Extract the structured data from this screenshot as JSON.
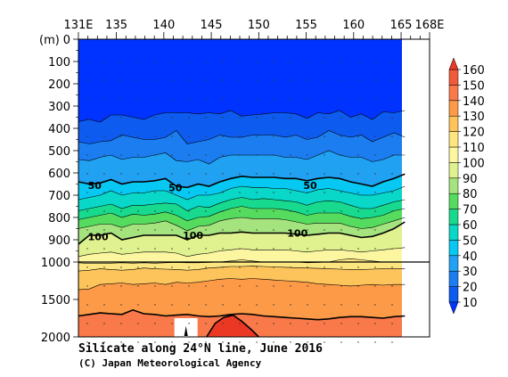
{
  "chart_data": {
    "type": "contour",
    "title": "Silicate along 24°N line, June 2016",
    "credit": "(C) Japan Meteorological Agency",
    "x_axis": {
      "ticks": [
        131,
        135,
        140,
        145,
        150,
        155,
        160,
        165,
        168
      ],
      "tick_labels": [
        "131E",
        "135",
        "140",
        "145",
        "150",
        "155",
        "160",
        "165",
        "168E"
      ],
      "data_range": [
        131,
        165.4
      ]
    },
    "y_axis": {
      "unit_label": "(m)",
      "upper_ticks": [
        0,
        100,
        200,
        300,
        400,
        500,
        600,
        700,
        800,
        900,
        1000
      ],
      "upper_tick_labels": [
        "0",
        "100",
        "200",
        "300",
        "400",
        "500",
        "600",
        "700",
        "800",
        "900",
        "1000"
      ],
      "lower_ticks": [
        1500,
        2000
      ],
      "lower_tick_labels": [
        "1500",
        "2000"
      ],
      "scale_break_depth": 1000
    },
    "colorbar": {
      "levels": [
        10,
        20,
        30,
        40,
        50,
        60,
        70,
        80,
        90,
        100,
        110,
        120,
        130,
        140,
        150,
        160
      ],
      "labels": [
        "10",
        "20",
        "30",
        "40",
        "50",
        "60",
        "70",
        "80",
        "90",
        "100",
        "110",
        "120",
        "130",
        "140",
        "150",
        "160"
      ],
      "colors": [
        "#0033ff",
        "#0e5bef",
        "#1c7df0",
        "#21a1f2",
        "#06c8f2",
        "#09d7c7",
        "#18da8e",
        "#55dc5f",
        "#a5e37e",
        "#dff28f",
        "#fcf6a0",
        "#fde57f",
        "#fcc45a",
        "#fc9a47",
        "#f9794a",
        "#f25b3a",
        "#ea3825"
      ]
    },
    "contour_labels": [
      {
        "value": 50,
        "text": "50",
        "lon": 132,
        "depth": 655
      },
      {
        "value": 50,
        "text": "50",
        "lon": 140.5,
        "depth": 665
      },
      {
        "value": 50,
        "text": "50",
        "lon": 154.7,
        "depth": 655
      },
      {
        "value": 100,
        "text": "100",
        "lon": 132,
        "depth": 885
      },
      {
        "value": 100,
        "text": "100",
        "lon": 142,
        "depth": 880
      },
      {
        "value": 100,
        "text": "100",
        "lon": 153,
        "depth": 870
      }
    ],
    "isolines": [
      {
        "value": 20,
        "depth": [
          370,
          360,
          372,
          340,
          340,
          350,
          360,
          340,
          330,
          330,
          330,
          335,
          330,
          335,
          320,
          345,
          340,
          335,
          330,
          330,
          335,
          355,
          330,
          335,
          320,
          350,
          335,
          360,
          325,
          330,
          320
        ]
      },
      {
        "value": 30,
        "depth": [
          460,
          470,
          460,
          455,
          430,
          440,
          450,
          450,
          440,
          410,
          470,
          460,
          450,
          430,
          440,
          440,
          430,
          430,
          430,
          440,
          430,
          450,
          440,
          410,
          430,
          440,
          430,
          460,
          440,
          420,
          440
        ]
      },
      {
        "value": 40,
        "depth": [
          540,
          545,
          530,
          520,
          540,
          530,
          530,
          520,
          510,
          545,
          550,
          540,
          560,
          530,
          520,
          520,
          520,
          520,
          520,
          530,
          530,
          540,
          520,
          500,
          520,
          530,
          530,
          550,
          540,
          520,
          520
        ]
      },
      {
        "value": 50,
        "depth": [
          640,
          650,
          645,
          630,
          650,
          640,
          640,
          635,
          625,
          660,
          665,
          650,
          660,
          640,
          625,
          615,
          620,
          620,
          620,
          625,
          625,
          635,
          625,
          620,
          625,
          640,
          650,
          660,
          640,
          625,
          605
        ]
      },
      {
        "value": 60,
        "depth": [
          720,
          710,
          700,
          680,
          700,
          690,
          690,
          680,
          680,
          700,
          720,
          700,
          700,
          690,
          670,
          660,
          665,
          665,
          670,
          670,
          680,
          690,
          675,
          670,
          680,
          690,
          700,
          700,
          690,
          680,
          660
        ]
      },
      {
        "value": 70,
        "depth": [
          770,
          760,
          750,
          740,
          760,
          745,
          745,
          740,
          735,
          740,
          770,
          750,
          755,
          735,
          720,
          710,
          720,
          715,
          720,
          725,
          730,
          745,
          730,
          725,
          730,
          745,
          760,
          760,
          745,
          730,
          720
        ]
      },
      {
        "value": 80,
        "depth": [
          810,
          800,
          790,
          780,
          800,
          785,
          790,
          785,
          775,
          790,
          815,
          800,
          795,
          775,
          760,
          750,
          760,
          760,
          760,
          765,
          775,
          790,
          780,
          780,
          780,
          795,
          805,
          800,
          790,
          770,
          760
        ]
      },
      {
        "value": 90,
        "depth": [
          850,
          840,
          830,
          830,
          845,
          830,
          830,
          825,
          815,
          835,
          860,
          840,
          835,
          815,
          805,
          800,
          805,
          805,
          805,
          810,
          820,
          830,
          825,
          825,
          825,
          840,
          850,
          845,
          830,
          815,
          800
        ]
      },
      {
        "value": 100,
        "depth": [
          920,
          880,
          880,
          870,
          900,
          890,
          880,
          880,
          880,
          880,
          900,
          880,
          880,
          870,
          870,
          865,
          870,
          870,
          870,
          870,
          875,
          880,
          875,
          870,
          870,
          880,
          890,
          885,
          870,
          850,
          820
        ]
      },
      {
        "value": 110,
        "depth": [
          975,
          965,
          960,
          955,
          965,
          960,
          955,
          955,
          955,
          960,
          975,
          965,
          960,
          950,
          945,
          940,
          945,
          945,
          945,
          945,
          950,
          955,
          950,
          945,
          945,
          950,
          955,
          950,
          945,
          940,
          935
        ]
      },
      {
        "value": 120,
        "depth": [
          1010,
          1020,
          1020,
          1015,
          1010,
          1015,
          1010,
          1015,
          1010,
          1005,
          1010,
          1010,
          1005,
          1000,
          995,
          990,
          995,
          1000,
          1000,
          1000,
          1000,
          1010,
          1005,
          1000,
          990,
          985,
          990,
          995,
          1000,
          1000,
          1000
        ]
      },
      {
        "value": 130,
        "depth": [
          1120,
          1110,
          1090,
          1100,
          1110,
          1100,
          1080,
          1090,
          1095,
          1100,
          1110,
          1100,
          1080,
          1070,
          1060,
          1060,
          1055,
          1060,
          1065,
          1070,
          1075,
          1080,
          1085,
          1090,
          1095,
          1100,
          1100,
          1095,
          1090,
          1090,
          1090
        ]
      },
      {
        "value": 140,
        "depth": [
          1370,
          1360,
          1300,
          1290,
          1280,
          1300,
          1290,
          1280,
          1300,
          1270,
          1280,
          1270,
          1250,
          1230,
          1220,
          1230,
          1220,
          1230,
          1240,
          1250,
          1260,
          1270,
          1290,
          1300,
          1310,
          1320,
          1310,
          1300,
          1310,
          1300,
          1300
        ]
      },
      {
        "value": 150,
        "depth": [
          1720,
          1700,
          1680,
          1690,
          1700,
          1640,
          1690,
          1700,
          1720,
          1710,
          1700,
          1720,
          1730,
          1720,
          1700,
          1690,
          1700,
          1720,
          1730,
          1740,
          1750,
          1760,
          1770,
          1760,
          1740,
          1730,
          1730,
          1740,
          1750,
          1730,
          1720
        ]
      }
    ],
    "dome_160": [
      [
        144.5,
        2000
      ],
      [
        145.4,
        1820
      ],
      [
        146.3,
        1740
      ],
      [
        147.3,
        1710
      ],
      [
        148.2,
        1790
      ],
      [
        149.2,
        1900
      ],
      [
        150.0,
        2000
      ]
    ],
    "missing_data": [
      [
        141.3,
        1750
      ],
      [
        141.3,
        1950
      ]
    ],
    "grid": false
  }
}
